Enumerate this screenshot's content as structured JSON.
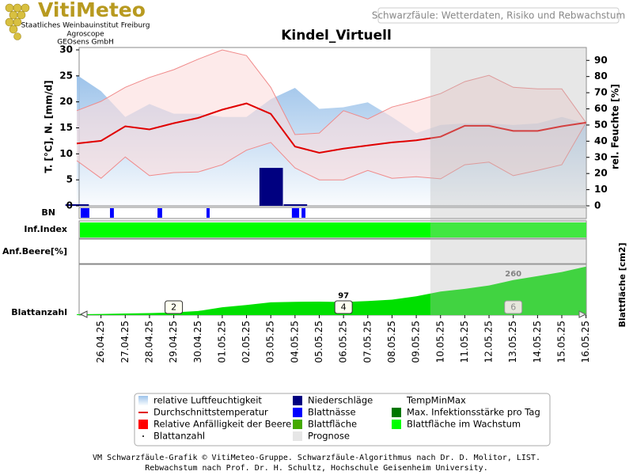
{
  "header": {
    "logo": "VitiMeteo",
    "lines": [
      "Staatliches Weinbauinstitut Freiburg",
      "Agroscope",
      "GEOsens GmbH"
    ],
    "caption": "Schwarzfäule: Wetterdaten, Risiko und Rebwachstum"
  },
  "chart_data": {
    "type": "combo",
    "title": "Kindel_Virtuell",
    "categories": [
      null,
      "26.04.25",
      "27.04.25",
      "28.04.25",
      "29.04.25",
      "30.04.25",
      "01.05.25",
      "02.05.25",
      "03.05.25",
      "04.05.25",
      "05.05.25",
      "06.05.25",
      "07.05.25",
      "08.05.25",
      "09.05.25",
      "10.05.25",
      "11.05.25",
      "12.05.25",
      "13.05.25",
      "14.05.25",
      "15.05.25",
      "16.05.25"
    ],
    "y_label": "T. [°C], N. [mm/d]",
    "y2_label": "rel. Feuchte [%]",
    "y3_label": "Blattfläche [cm2]",
    "ylim": [
      0,
      30
    ],
    "yticks": [
      0,
      5,
      10,
      15,
      20,
      25,
      30
    ],
    "y2lim": [
      0,
      96.5
    ],
    "y2ticks": [
      0,
      10,
      20,
      30,
      40,
      50,
      60,
      70,
      80,
      90
    ],
    "y3lim": [
      0,
      365
    ],
    "forecast_from": 14.58,
    "rows": [
      "BN",
      "Inf.Index",
      "Anf.Beere[%]",
      "Blattanzahl"
    ],
    "humidity": {
      "color": "#9dc3ea",
      "axis": "y2",
      "values": [
        81,
        71,
        55,
        63,
        57,
        57,
        55,
        55,
        66,
        73,
        60,
        61,
        64,
        55,
        45,
        50,
        51,
        51,
        50,
        51,
        55,
        51
      ]
    },
    "temperature": {
      "color": "#e00000",
      "values": [
        12,
        12.5,
        15.3,
        14.7,
        15.9,
        16.9,
        18.5,
        19.7,
        17.7,
        11.4,
        10.2,
        11,
        11.6,
        12.2,
        12.6,
        13.3,
        15.4,
        15.4,
        14.4,
        14.4,
        15.3,
        16
      ]
    },
    "temp_band": {
      "color": "#f08a8a",
      "fill": "#fcdcdc",
      "max": [
        18.3,
        20.1,
        22.8,
        24.7,
        26.2,
        28.2,
        30,
        28.9,
        22.8,
        13.7,
        14,
        18.3,
        16.7,
        19,
        20.2,
        21.6,
        23.9,
        25.1,
        22.8,
        22.5,
        22.5,
        16
      ],
      "min": [
        8.7,
        5.3,
        9.4,
        5.8,
        6.4,
        6.5,
        7.9,
        10.7,
        12.2,
        7.3,
        5,
        5,
        6.8,
        5.3,
        5.6,
        5.2,
        7.9,
        8.4,
        5.8,
        6.8,
        7.9,
        16
      ]
    },
    "precipitation": {
      "color": "#000080",
      "values": [
        0.3,
        0,
        0,
        0,
        0,
        0,
        0,
        0,
        7.3,
        0.3,
        0,
        0,
        0,
        0,
        0,
        0,
        0,
        0,
        0,
        0,
        0,
        0
      ]
    },
    "leaf_wetness": {
      "color": "#0000ff",
      "intervals": [
        [
          0.16,
          0.52
        ],
        [
          1.37,
          1.53
        ],
        [
          3.33,
          3.52
        ],
        [
          5.35,
          5.48
        ],
        [
          8.87,
          9.17
        ],
        [
          9.27,
          9.43
        ]
      ]
    },
    "infection_color": "#00ff00",
    "leaf_area": {
      "color": "#00e000",
      "values": [
        6,
        8,
        12,
        15,
        20,
        30,
        58,
        75,
        95,
        99,
        100,
        97,
        105,
        115,
        140,
        175,
        195,
        220,
        260,
        290,
        320,
        360
      ]
    },
    "leaf_count": {
      "index": [
        4,
        11,
        18
      ],
      "values": [
        2,
        4,
        6
      ]
    },
    "legend": [
      {
        "name": "relative Luftfeuchtigkeit",
        "color": "#9dc3ea",
        "kind": "area"
      },
      {
        "name": "Durchschnittstemperatur",
        "color": "#e00000",
        "kind": "line"
      },
      {
        "name": "Relative Anfälligkeit der Beere",
        "color": "#ff0000",
        "kind": "square"
      },
      {
        "name": "Blattanzahl",
        "color": "#000000",
        "kind": "dot"
      },
      {
        "name": "Niederschläge",
        "color": "#000080",
        "kind": "square"
      },
      {
        "name": "Blattnässe",
        "color": "#0000ff",
        "kind": "square"
      },
      {
        "name": "Blattfläche",
        "color": "#44aa00",
        "kind": "square"
      },
      {
        "name": "Prognose",
        "color": "#e6e6e6",
        "kind": "square"
      },
      {
        "name": "TempMinMax",
        "color": "#f08a8a",
        "kind": "none"
      },
      {
        "name": "Max. Infektionsstärke pro Tag",
        "color": "#007700",
        "kind": "square"
      },
      {
        "name": "Blattfläche im Wachstum",
        "color": "#00ff00",
        "kind": "square"
      }
    ]
  },
  "footer": [
    "VM Schwarzfäule-Grafik © VitiMeteo-Gruppe. Schwarzfäule-Algorithmus nach Dr. D. Molitor, LIST.",
    "Rebwachstum nach Prof. Dr. H. Schultz, Hochschule Geisenheim University."
  ]
}
